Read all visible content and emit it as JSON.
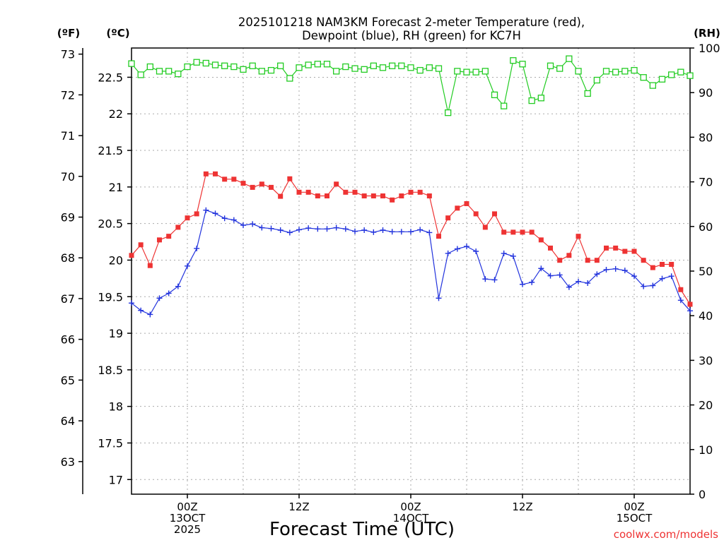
{
  "chart_data": {
    "type": "line",
    "title_line1": "2025101218 NAM3KM Forecast 2-meter Temperature (red),",
    "title_line2": "Dewpoint (blue), RH (green) for KC7H",
    "xlabel": "Forecast Time (UTC)",
    "credit": "coolwx.com/models",
    "left_unit_f": "(ºF)",
    "left_unit_c": "(ºC)",
    "right_unit": "(RH)",
    "x_hour_range": [
      18,
      78
    ],
    "f_range": [
      62.2,
      73.15
    ],
    "c_range": [
      16.8,
      22.9
    ],
    "rh_range": [
      0,
      100
    ],
    "f_ticks": [
      63,
      64,
      65,
      66,
      67,
      68,
      69,
      70,
      71,
      72,
      73
    ],
    "c_ticks": [
      17,
      17.5,
      18,
      18.5,
      19,
      19.5,
      20,
      20.5,
      21,
      21.5,
      22,
      22.5
    ],
    "rh_ticks": [
      0,
      10,
      20,
      30,
      40,
      50,
      60,
      70,
      80,
      90,
      100
    ],
    "x_ticks": [
      {
        "hour": 24,
        "lines": [
          "00Z",
          "13OCT",
          "2025"
        ]
      },
      {
        "hour": 36,
        "lines": [
          "12Z"
        ]
      },
      {
        "hour": 48,
        "lines": [
          "00Z",
          "14OCT"
        ]
      },
      {
        "hour": 60,
        "lines": [
          "12Z"
        ]
      },
      {
        "hour": 72,
        "lines": [
          "00Z",
          "15OCT"
        ]
      }
    ],
    "x_grid_hours": [
      24,
      30,
      36,
      42,
      48,
      54,
      60,
      66,
      72
    ],
    "hours": [
      18,
      19,
      20,
      21,
      22,
      23,
      24,
      25,
      26,
      27,
      28,
      29,
      30,
      31,
      32,
      33,
      34,
      35,
      36,
      37,
      38,
      39,
      40,
      41,
      42,
      43,
      44,
      45,
      46,
      47,
      48,
      49,
      50,
      51,
      52,
      53,
      54,
      55,
      56,
      57,
      58,
      59,
      60,
      61,
      62,
      63,
      64,
      65,
      66,
      67,
      68,
      69,
      70,
      71,
      72,
      73,
      74,
      75,
      76,
      77,
      78
    ],
    "series": [
      {
        "name": "Temperature",
        "axis": "F",
        "color": "#ee3333",
        "marker": "filled-square",
        "values": [
          68.06,
          68.32,
          67.81,
          68.44,
          68.53,
          68.75,
          68.98,
          69.08,
          70.06,
          70.06,
          69.93,
          69.93,
          69.83,
          69.73,
          69.81,
          69.73,
          69.51,
          69.94,
          69.61,
          69.61,
          69.52,
          69.52,
          69.81,
          69.61,
          69.61,
          69.52,
          69.52,
          69.52,
          69.42,
          69.52,
          69.61,
          69.61,
          69.52,
          68.53,
          68.98,
          69.22,
          69.33,
          69.08,
          68.75,
          69.08,
          68.63,
          68.63,
          68.63,
          68.63,
          68.44,
          68.24,
          67.94,
          68.06,
          68.53,
          67.94,
          67.94,
          68.24,
          68.24,
          68.16,
          68.16,
          67.94,
          67.76,
          67.84,
          67.84,
          67.22,
          66.86
        ]
      },
      {
        "name": "Dewpoint",
        "axis": "F",
        "color": "#2233dd",
        "marker": "plus",
        "values": [
          66.89,
          66.71,
          66.61,
          67.01,
          67.13,
          67.3,
          67.8,
          68.23,
          69.17,
          69.09,
          68.97,
          68.93,
          68.8,
          68.83,
          68.74,
          68.72,
          68.68,
          68.62,
          68.69,
          68.73,
          68.71,
          68.71,
          68.74,
          68.71,
          68.65,
          68.68,
          68.63,
          68.68,
          68.64,
          68.64,
          68.64,
          68.69,
          68.62,
          67.01,
          68.11,
          68.22,
          68.28,
          68.16,
          67.48,
          67.46,
          68.11,
          68.04,
          67.35,
          67.4,
          67.74,
          67.56,
          67.58,
          67.28,
          67.42,
          67.38,
          67.6,
          67.71,
          67.73,
          67.69,
          67.55,
          67.3,
          67.32,
          67.49,
          67.55,
          66.96,
          66.7
        ]
      },
      {
        "name": "RH",
        "axis": "RH",
        "color": "#22cc22",
        "marker": "open-square",
        "values": [
          96.5,
          94.0,
          95.8,
          94.8,
          94.8,
          94.2,
          95.8,
          96.8,
          96.6,
          96.2,
          96.0,
          95.8,
          95.2,
          96.0,
          94.8,
          95.0,
          96.0,
          93.2,
          95.6,
          96.2,
          96.4,
          96.4,
          94.8,
          95.8,
          95.4,
          95.2,
          96.0,
          95.6,
          96.0,
          96.0,
          95.6,
          95.0,
          95.6,
          95.4,
          85.5,
          94.8,
          94.6,
          94.6,
          94.8,
          89.5,
          87.0,
          97.2,
          96.4,
          88.2,
          88.8,
          96.0,
          95.4,
          97.6,
          94.8,
          89.8,
          92.8,
          94.8,
          94.6,
          94.8,
          95.0,
          93.4,
          91.6,
          93.0,
          94.0,
          94.6,
          93.8
        ]
      }
    ]
  }
}
